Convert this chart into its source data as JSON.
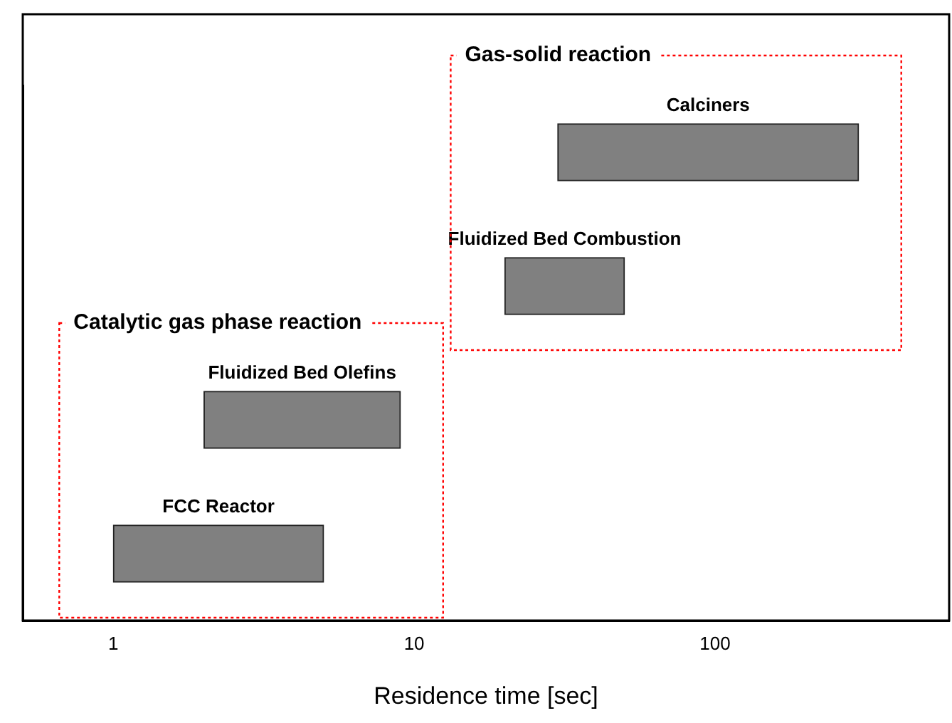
{
  "chart_data": {
    "type": "bar",
    "orientation": "horizontal",
    "xlabel": "Residence time [sec]",
    "categories": [
      "Calciners",
      "Fluidized Bed Combustion",
      "Fluidized Bed Olefins",
      "FCC Reactor"
    ],
    "base": [
      30,
      20,
      2,
      1
    ],
    "values": [
      270,
      30,
      7,
      4
    ],
    "color": "#808080",
    "log": "x",
    "xlim": [
      0.5,
      600
    ],
    "xticks": [
      1,
      10,
      100
    ],
    "grid": false,
    "tick_labels": "x",
    "annotations": [
      "Gas-solid reaction",
      "Catalytic gas phase reaction"
    ]
  }
}
